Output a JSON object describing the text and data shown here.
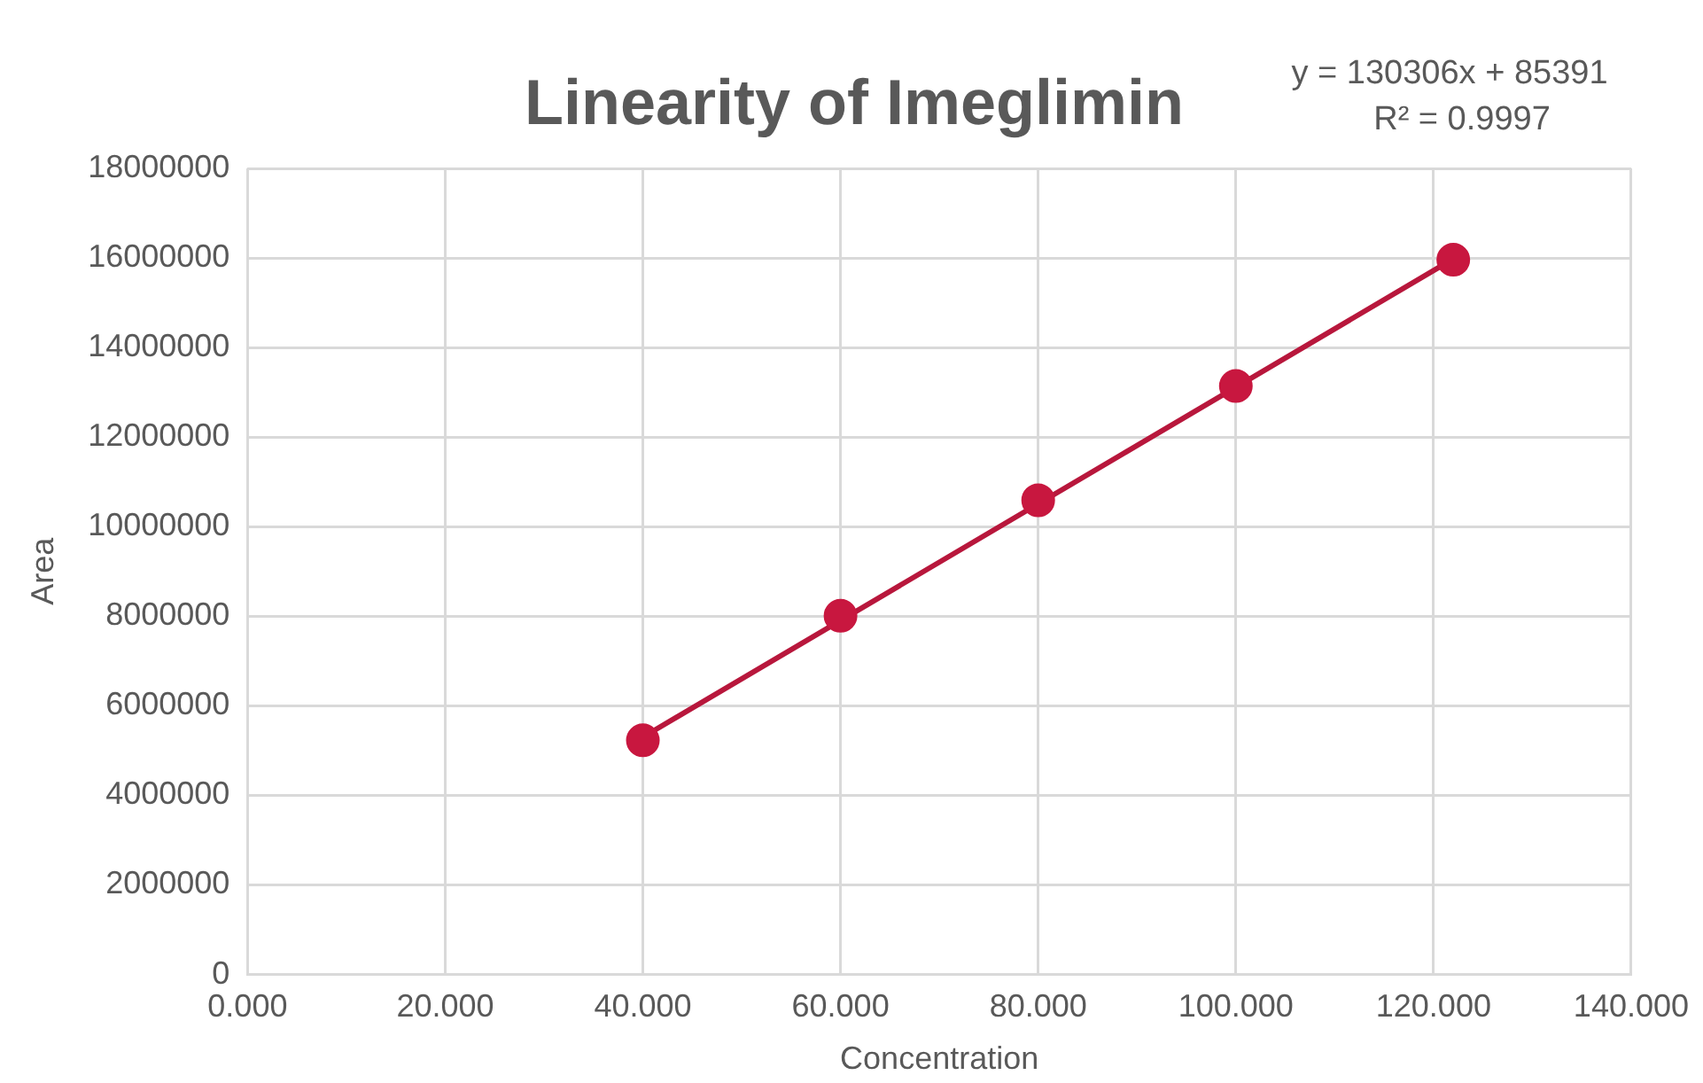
{
  "chart_data": {
    "type": "scatter",
    "title": "Linearity of Imeglimin",
    "xlabel": "Concentration",
    "ylabel": "Area",
    "annotations": [
      "y = 130306x + 85391",
      "R² = 0.9997"
    ],
    "series": [
      {
        "color": "#c8173f",
        "x": [
          40,
          60,
          80,
          100,
          122
        ],
        "values": [
          5230000,
          8010000,
          10590000,
          13140000,
          15960000
        ],
        "marker": "circle"
      },
      {
        "type": "line",
        "color": "#b8173c",
        "x": [
          40,
          122
        ],
        "values": [
          5300000,
          15980000
        ],
        "marker": "none",
        "line_style": "solid"
      }
    ],
    "xlim": [
      0,
      140
    ],
    "xticks": [
      {
        "value": 0,
        "label": "0.000"
      },
      {
        "value": 20,
        "label": "20.000"
      },
      {
        "value": 40,
        "label": "40.000"
      },
      {
        "value": 60,
        "label": "60.000"
      },
      {
        "value": 80,
        "label": "80.000"
      },
      {
        "value": 100,
        "label": "100.000"
      },
      {
        "value": 120,
        "label": "120.000"
      },
      {
        "value": 140,
        "label": "140.000"
      }
    ],
    "ylim": [
      0,
      18000000
    ],
    "yticks": [
      0,
      2000000,
      4000000,
      6000000,
      8000000,
      10000000,
      12000000,
      14000000,
      16000000,
      18000000
    ],
    "grid": true,
    "legend": false
  }
}
